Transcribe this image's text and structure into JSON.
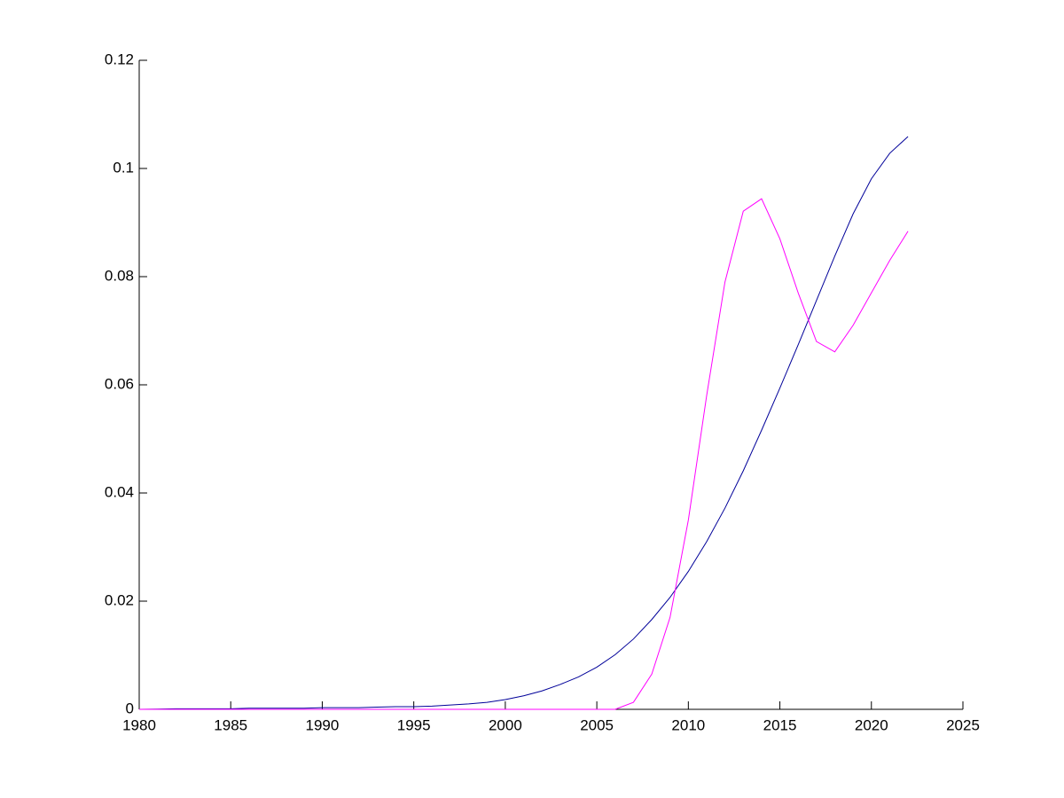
{
  "chart_data": {
    "type": "line",
    "x": [
      1980,
      1981,
      1982,
      1983,
      1984,
      1985,
      1986,
      1987,
      1988,
      1989,
      1990,
      1991,
      1992,
      1993,
      1994,
      1995,
      1996,
      1997,
      1998,
      1999,
      2000,
      2001,
      2002,
      2003,
      2004,
      2005,
      2006,
      2007,
      2008,
      2009,
      2010,
      2011,
      2012,
      2013,
      2014,
      2015,
      2016,
      2017,
      2018,
      2019,
      2020,
      2021,
      2022
    ],
    "series": [
      {
        "color": "#000099",
        "values": [
          0,
          5e-05,
          0.0001,
          0.0001,
          0.0001,
          0.0001,
          0.0002,
          0.0002,
          0.0002,
          0.0002,
          0.0003,
          0.0003,
          0.0003,
          0.0004,
          0.0005,
          0.0005,
          0.0006,
          0.0008,
          0.001,
          0.0013,
          0.0018,
          0.0025,
          0.0034,
          0.0046,
          0.006,
          0.0078,
          0.0101,
          0.013,
          0.0166,
          0.0207,
          0.0255,
          0.031,
          0.0372,
          0.0441,
          0.0516,
          0.0594,
          0.0674,
          0.0756,
          0.0838,
          0.0916,
          0.0981,
          0.1028,
          0.1059
        ]
      },
      {
        "color": "#ff00ff",
        "values": [
          0,
          0,
          0,
          0,
          0,
          0,
          0,
          0,
          0,
          0,
          0,
          0,
          0,
          0,
          0,
          0,
          0,
          0,
          0,
          0,
          0,
          0,
          0,
          0,
          0,
          0,
          0,
          0.0013,
          0.0065,
          0.017,
          0.035,
          0.058,
          0.079,
          0.0921,
          0.0944,
          0.087,
          0.077,
          0.068,
          0.0661,
          0.071,
          0.077,
          0.083,
          0.0884
        ]
      }
    ],
    "xlim": [
      1980,
      2025
    ],
    "xticks": [
      1980,
      1985,
      1990,
      1995,
      2000,
      2005,
      2010,
      2015,
      2020,
      2025
    ],
    "ylim": [
      0,
      0.12
    ],
    "yticks": [
      0,
      0.02,
      0.04,
      0.06,
      0.08,
      0.1,
      0.12
    ]
  }
}
